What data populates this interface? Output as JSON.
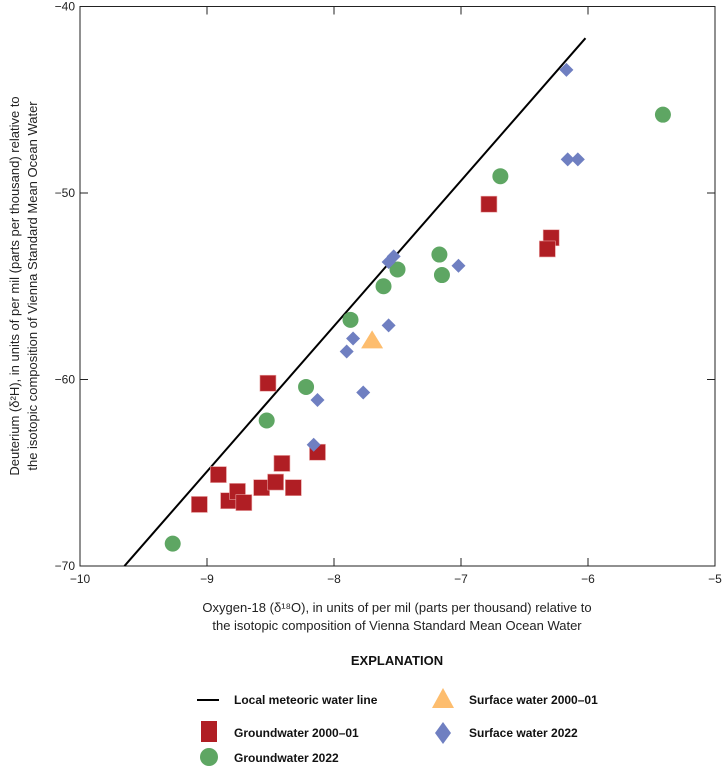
{
  "chart_data": {
    "type": "scatter",
    "xlabel": [
      "Oxygen-18 (δ¹⁸O), in units of per mil (parts per thousand) relative to",
      "the isotopic composition of Vienna Standard Mean Ocean Water"
    ],
    "ylabel": [
      "Deuterium (δ²H), in units of per mil (parts per thousand) relative to",
      "the isotopic composition of Vienna Standard Mean Ocean Water"
    ],
    "xlim": [
      -10,
      -5
    ],
    "ylim": [
      -70,
      -40
    ],
    "xticks": [
      -10,
      -9,
      -8,
      -7,
      -6,
      -5
    ],
    "xtick_labels": [
      "−10",
      "−9",
      "−8",
      "−7",
      "−6",
      "−5"
    ],
    "yticks": [
      -70,
      -60,
      -50,
      -40
    ],
    "ytick_labels": [
      "−70",
      "−60",
      "−50",
      "−40"
    ],
    "grid": false,
    "legend_title": "EXPLANATION",
    "legend_placement": "below",
    "line": {
      "name": "Local meteoric water line",
      "color": "#000000",
      "points": [
        [
          -9.65,
          -70
        ],
        [
          -6.02,
          -41.7
        ]
      ]
    },
    "series": [
      {
        "name": "Groundwater 2000–01",
        "marker": "square",
        "color": "#b01e24",
        "points": [
          [
            -8.52,
            -60.2
          ],
          [
            -8.91,
            -65.1
          ],
          [
            -9.06,
            -66.7
          ],
          [
            -8.83,
            -66.5
          ],
          [
            -8.76,
            -66.0
          ],
          [
            -8.71,
            -66.6
          ],
          [
            -8.57,
            -65.8
          ],
          [
            -8.46,
            -65.5
          ],
          [
            -8.41,
            -64.5
          ],
          [
            -8.32,
            -65.8
          ],
          [
            -8.13,
            -63.9
          ],
          [
            -6.78,
            -50.6
          ],
          [
            -6.29,
            -52.4
          ],
          [
            -6.32,
            -53.0
          ]
        ]
      },
      {
        "name": "Groundwater 2022",
        "marker": "circle",
        "color": "#5ea663",
        "points": [
          [
            -9.27,
            -68.8
          ],
          [
            -8.53,
            -62.2
          ],
          [
            -8.22,
            -60.4
          ],
          [
            -7.87,
            -56.8
          ],
          [
            -7.61,
            -55.0
          ],
          [
            -7.5,
            -54.1
          ],
          [
            -7.17,
            -53.3
          ],
          [
            -7.15,
            -54.4
          ],
          [
            -6.69,
            -49.1
          ],
          [
            -5.41,
            -45.8
          ]
        ]
      },
      {
        "name": "Surface water 2000–01",
        "marker": "triangle",
        "color": "#fdbd6e",
        "points": [
          [
            -7.7,
            -57.9
          ]
        ]
      },
      {
        "name": "Surface water 2022",
        "marker": "diamond",
        "color": "#6f7fc1",
        "points": [
          [
            -8.16,
            -63.5
          ],
          [
            -8.13,
            -61.1
          ],
          [
            -7.77,
            -60.7
          ],
          [
            -7.9,
            -58.5
          ],
          [
            -7.85,
            -57.8
          ],
          [
            -7.57,
            -57.1
          ],
          [
            -7.02,
            -53.9
          ],
          [
            -7.57,
            -53.7
          ],
          [
            -7.53,
            -53.4
          ],
          [
            -6.17,
            -43.4
          ],
          [
            -6.16,
            -48.2
          ],
          [
            -6.08,
            -48.2
          ]
        ]
      }
    ]
  }
}
